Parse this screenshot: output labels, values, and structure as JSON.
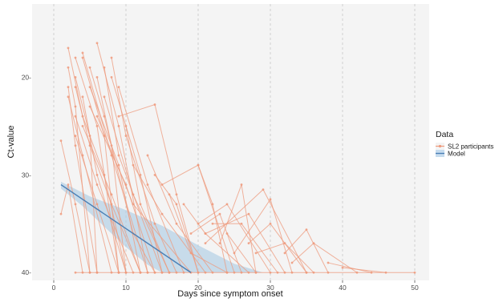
{
  "chart_data": {
    "type": "line",
    "xlabel": "Days since symptom onset",
    "ylabel": "Ct-value",
    "xlim": [
      -3,
      52
    ],
    "ylim": [
      40.8,
      12.5
    ],
    "y_reversed": true,
    "x_ticks": [
      0,
      10,
      20,
      30,
      40,
      50
    ],
    "x_tick_labels": [
      "0",
      "10",
      "20",
      "30",
      "40",
      "50"
    ],
    "y_ticks": [
      20,
      30,
      40
    ],
    "y_tick_labels": [
      "20-",
      "30-",
      "40-"
    ],
    "grid": true,
    "grid_style": "vertical dashed",
    "legend": {
      "title": "Data",
      "placement": "right",
      "entries": [
        "SL2 participants",
        "Model"
      ]
    },
    "colors": {
      "participants": "#ee9a7c",
      "model_line": "#4a7fb5",
      "model_band": "#a9c9e2",
      "panel": "#f4f4f4",
      "grid": "#c9c9c9"
    },
    "series": [
      {
        "name": "SL2 participants",
        "trajectories": [
          [
            [
              1,
              26.5
            ],
            [
              3,
              33
            ],
            [
              5,
              40
            ]
          ],
          [
            [
              1,
              34
            ],
            [
              2,
              31
            ],
            [
              4,
              40
            ]
          ],
          [
            [
              2,
              21
            ],
            [
              3,
              27
            ],
            [
              6,
              40
            ]
          ],
          [
            [
              2,
              17
            ],
            [
              4,
              24
            ],
            [
              7,
              30
            ],
            [
              10,
              40
            ]
          ],
          [
            [
              2,
              19
            ],
            [
              3,
              23
            ],
            [
              5,
              40
            ]
          ],
          [
            [
              2,
              22
            ],
            [
              4,
              28
            ],
            [
              8,
              40
            ]
          ],
          [
            [
              3,
              20
            ],
            [
              5,
              26
            ],
            [
              6,
              40
            ]
          ],
          [
            [
              3,
              18
            ],
            [
              6,
              25
            ],
            [
              9,
              40
            ]
          ],
          [
            [
              3,
              24
            ],
            [
              6,
              31
            ],
            [
              11,
              40
            ]
          ],
          [
            [
              3,
              21
            ],
            [
              5,
              27
            ],
            [
              8,
              33
            ],
            [
              12,
              40
            ]
          ],
          [
            [
              4,
              18
            ],
            [
              7,
              26
            ],
            [
              9,
              40
            ]
          ],
          [
            [
              4,
              22
            ],
            [
              6,
              30
            ],
            [
              10,
              40
            ]
          ],
          [
            [
              4,
              17.5
            ],
            [
              8,
              28
            ],
            [
              13,
              40
            ]
          ],
          [
            [
              5,
              19
            ],
            [
              7,
              24
            ],
            [
              11,
              36
            ],
            [
              14,
              40
            ]
          ],
          [
            [
              5,
              21
            ],
            [
              9,
              29
            ],
            [
              12,
              40
            ]
          ],
          [
            [
              6,
              16.5
            ],
            [
              9,
              25
            ],
            [
              13,
              40
            ]
          ],
          [
            [
              6,
              20
            ],
            [
              8,
              27
            ],
            [
              10,
              40
            ]
          ],
          [
            [
              7,
              19
            ],
            [
              9,
              28
            ],
            [
              15,
              40
            ]
          ],
          [
            [
              7,
              22
            ],
            [
              11,
              32
            ],
            [
              16,
              40
            ]
          ],
          [
            [
              8,
              18
            ],
            [
              10,
              26
            ],
            [
              14,
              35
            ],
            [
              17,
              40
            ]
          ],
          [
            [
              8,
              20
            ],
            [
              12,
              30
            ],
            [
              15,
              40
            ]
          ],
          [
            [
              9,
              21
            ],
            [
              13,
              31
            ],
            [
              18,
              40
            ]
          ],
          [
            [
              10,
              25
            ],
            [
              12,
              33
            ],
            [
              16,
              40
            ]
          ],
          [
            [
              3,
              26
            ],
            [
              6,
              33
            ],
            [
              9,
              40
            ]
          ],
          [
            [
              4,
              25
            ],
            [
              8,
              32
            ],
            [
              12,
              40
            ]
          ],
          [
            [
              5,
              23
            ],
            [
              10,
              31
            ],
            [
              14,
              40
            ]
          ],
          [
            [
              6,
              24
            ],
            [
              11,
              33
            ],
            [
              19,
              40
            ]
          ],
          [
            [
              9,
              24
            ],
            [
              14,
              22.8
            ],
            [
              17,
              32
            ],
            [
              20,
              40
            ]
          ],
          [
            [
              13,
              28
            ],
            [
              17,
              35
            ],
            [
              22,
              40
            ]
          ],
          [
            [
              11,
              29
            ],
            [
              15,
              34
            ],
            [
              21,
              40
            ]
          ],
          [
            [
              14,
              30
            ],
            [
              17,
              33
            ],
            [
              20,
              40
            ]
          ],
          [
            [
              16,
              32
            ],
            [
              19,
              38
            ],
            [
              24,
              40
            ]
          ],
          [
            [
              15,
              31
            ],
            [
              20,
              29
            ],
            [
              25,
              40
            ]
          ],
          [
            [
              18,
              33
            ],
            [
              21,
              36
            ],
            [
              27,
              40
            ]
          ],
          [
            [
              20,
              35
            ],
            [
              24,
              33
            ],
            [
              30,
              40
            ]
          ],
          [
            [
              21,
              36
            ],
            [
              27,
              34
            ],
            [
              32,
              40
            ]
          ],
          [
            [
              23,
              37
            ],
            [
              26,
              31
            ],
            [
              28,
              40
            ]
          ],
          [
            [
              19,
              36
            ],
            [
              23,
              34
            ],
            [
              26,
              40
            ]
          ],
          [
            [
              21,
              37
            ],
            [
              29,
              31.5
            ],
            [
              35,
              40
            ]
          ],
          [
            [
              22,
              35
            ],
            [
              26,
              35
            ],
            [
              31,
              40
            ]
          ],
          [
            [
              24,
              36
            ],
            [
              28,
              40
            ]
          ],
          [
            [
              25,
              38
            ],
            [
              30,
              32.5
            ],
            [
              33,
              40
            ]
          ],
          [
            [
              20,
              29
            ],
            [
              22,
              33
            ],
            [
              24,
              40
            ]
          ],
          [
            [
              27,
              37
            ],
            [
              30,
              35
            ],
            [
              35,
              40
            ]
          ],
          [
            [
              28,
              38
            ],
            [
              32,
              37
            ],
            [
              36,
              40
            ]
          ],
          [
            [
              32,
              38
            ],
            [
              35,
              35.6
            ],
            [
              38,
              40
            ]
          ],
          [
            [
              33,
              39
            ],
            [
              36,
              37
            ],
            [
              42,
              40
            ]
          ],
          [
            [
              38,
              39
            ],
            [
              44,
              40
            ]
          ],
          [
            [
              40,
              39.5
            ],
            [
              46,
              40
            ]
          ],
          [
            [
              3,
              40
            ],
            [
              50,
              40
            ]
          ]
        ]
      },
      {
        "name": "Model",
        "line": [
          [
            1,
            31
          ],
          [
            19,
            40
          ]
        ],
        "band_upper": [
          [
            1,
            30.7
          ],
          [
            5,
            32.2
          ],
          [
            10,
            33.6
          ],
          [
            15,
            35.2
          ],
          [
            20,
            37.2
          ],
          [
            25,
            39.1
          ],
          [
            29,
            40
          ]
        ],
        "band_lower": [
          [
            1,
            31.4
          ],
          [
            4,
            33.2
          ],
          [
            7,
            35.3
          ],
          [
            10,
            37.4
          ],
          [
            13,
            39.2
          ],
          [
            15,
            40
          ]
        ]
      }
    ]
  }
}
